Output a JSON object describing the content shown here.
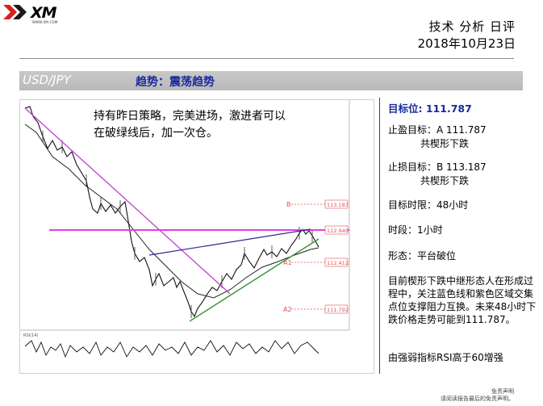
{
  "brand": {
    "name": "XM",
    "tagline": "WWW.XM.COM"
  },
  "header": {
    "title": "技术 分析 日评",
    "date": "2018年10月23日"
  },
  "band": {
    "pair": "USD/JPY",
    "trend": "趋势：震荡趋势"
  },
  "chart": {
    "annotation_line1": "持有昨日策略，完美进场，激进者可以",
    "annotation_line2": "在破绿线后，加一次仓。",
    "level_b": "B",
    "level_b_value": "113.187",
    "level_mid_value": "112.949",
    "level_a1": "A1",
    "level_a1_value": "112.412",
    "level_a2": "A2",
    "level_a2_value": "111.792",
    "rsi_label": "RSI(14)"
  },
  "panel": {
    "target": "目标位: 111.787",
    "tp_label": "止盈目标：A 111.787",
    "tp_sub": "共楔形下跌",
    "sl_label": "止损目标：B 113.187",
    "sl_sub": "共楔形下跌",
    "horizon": "目标时限：48小时",
    "timeframe": "时段：1小时",
    "pattern": "形态：平台破位",
    "description": "目前楔形下跌中继形态人在形成过程中，关注蓝色线和紫色区域交集点位支撑阻力互换。未来48小时下跌价格走势可能到111.787。",
    "rsi_note": "由强弱指标RSI高于60增强"
  },
  "footer": {
    "disclaimer_title": "免责声明",
    "disclaimer_text": "请阅读报告最后的免责声明。"
  },
  "colors": {
    "band_bg": "#bdbdbd",
    "trend_text": "#1a2a9c",
    "magenta": "#e040e0",
    "blue_line": "#2a2a90",
    "green_line": "#3a9a3a",
    "level_red": "#e05050"
  }
}
